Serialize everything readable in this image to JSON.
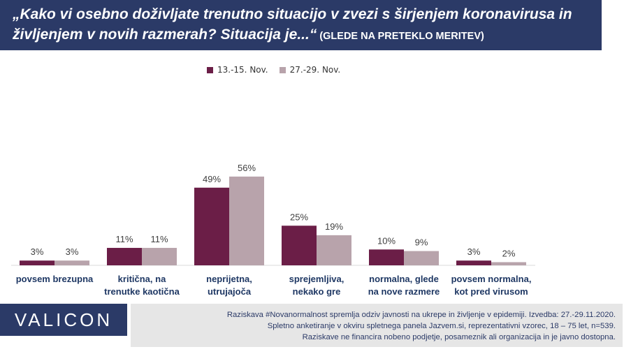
{
  "header": {
    "question": "„Kako vi osebno doživljate trenutno situacijo v zvezi s širjenjem koronavirusa in življenjem v novih razmerah? Situacija je...“",
    "note": "(GLEDE NA PRETEKLO MERITEV)"
  },
  "colors": {
    "series1": "#6b1e47",
    "series2": "#b8a3ab",
    "brand": "#2b3a67",
    "footer_bg": "#e6e6e6",
    "category_text": "#1f3864"
  },
  "chart_data": {
    "type": "bar",
    "categories": [
      "povsem brezupna",
      "kritična, na trenutke kaotična",
      "neprijetna, utrujajoča",
      "sprejemljiva, nekako gre",
      "normalna, glede na nove razmere",
      "povsem normalna, kot pred virusom"
    ],
    "category_lines": [
      [
        "povsem brezupna"
      ],
      [
        "kritična, na",
        "trenutke kaotična"
      ],
      [
        "neprijetna,",
        "utrujajoča"
      ],
      [
        "sprejemljiva,",
        "nekako gre"
      ],
      [
        "normalna, glede",
        "na nove razmere"
      ],
      [
        "povsem normalna,",
        "kot pred virusom"
      ]
    ],
    "series": [
      {
        "name": "13.-15. Nov.",
        "values": [
          3,
          11,
          49,
          25,
          10,
          3
        ],
        "labels": [
          "3%",
          "11%",
          "49%",
          "25%",
          "10%",
          "3%"
        ]
      },
      {
        "name": "27.-29. Nov.",
        "values": [
          3,
          11,
          56,
          19,
          9,
          2
        ],
        "labels": [
          "3%",
          "11%",
          "56%",
          "19%",
          "9%",
          "2%"
        ]
      }
    ],
    "unit": "%",
    "ylim": [
      0,
      60
    ],
    "grid": false,
    "legend_position": "top-center"
  },
  "footer": {
    "logo": "VALICON",
    "lines": [
      "Raziskava #Novanormalnost spremlja odziv javnosti na ukrepe in življenje v epidemiji. Izvedba: 27.-29.11.2020.",
      "Spletno anketiranje v okviru spletnega panela Jazvem.si, reprezentativni vzorec, 18 – 75 let, n=539.",
      "Raziskave ne financira nobeno podjetje, posameznik ali organizacija in je javno dostopna."
    ]
  }
}
